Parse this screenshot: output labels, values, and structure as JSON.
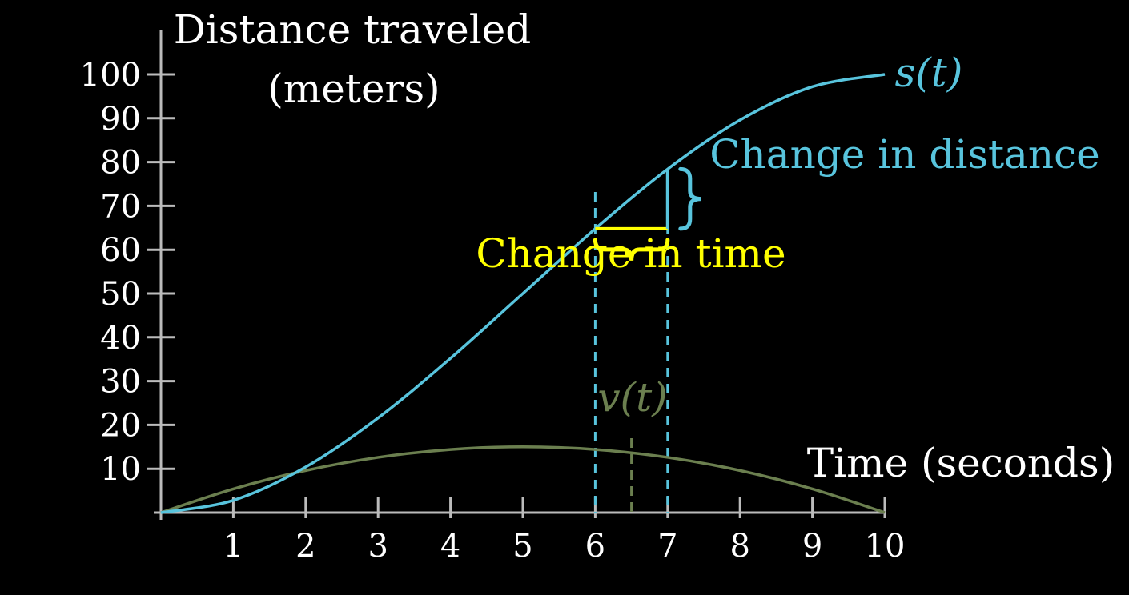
{
  "colors": {
    "background": "#000000",
    "axis": "#bbbbbb",
    "label": "#ffffff",
    "s_curve": "#58c4dd",
    "v_curve": "#6b7f4f",
    "time_change": "#ffff00",
    "distance_change": "#58c4dd"
  },
  "chart_data": {
    "type": "line",
    "xlabel": "Time (seconds)",
    "ylabel_line1": "Distance traveled",
    "ylabel_line2": "(meters)",
    "xlim": [
      0,
      10
    ],
    "ylim": [
      0,
      100
    ],
    "x_ticks": [
      1,
      2,
      3,
      4,
      5,
      6,
      7,
      8,
      9,
      10
    ],
    "y_ticks": [
      10,
      20,
      30,
      40,
      50,
      60,
      70,
      80,
      90,
      100
    ],
    "grid": false,
    "series": [
      {
        "name": "s(t)",
        "x": [
          0,
          1,
          2,
          3,
          4,
          5,
          6,
          7,
          8,
          9,
          10
        ],
        "y": [
          0.0,
          2.8,
          10.4,
          21.6,
          35.2,
          50.0,
          64.8,
          78.4,
          89.6,
          97.2,
          100.0
        ]
      },
      {
        "name": "v(t)",
        "x": [
          0,
          1,
          2,
          3,
          4,
          5,
          6,
          7,
          8,
          9,
          10
        ],
        "y": [
          0.0,
          5.4,
          9.6,
          12.6,
          14.4,
          15.0,
          14.4,
          12.6,
          9.6,
          5.4,
          0.0
        ]
      }
    ],
    "annotations": {
      "distance_change": "Change in distance",
      "time_change": "Change in time",
      "dt_interval": [
        6,
        7
      ],
      "v_marker_x": 6.5
    }
  }
}
